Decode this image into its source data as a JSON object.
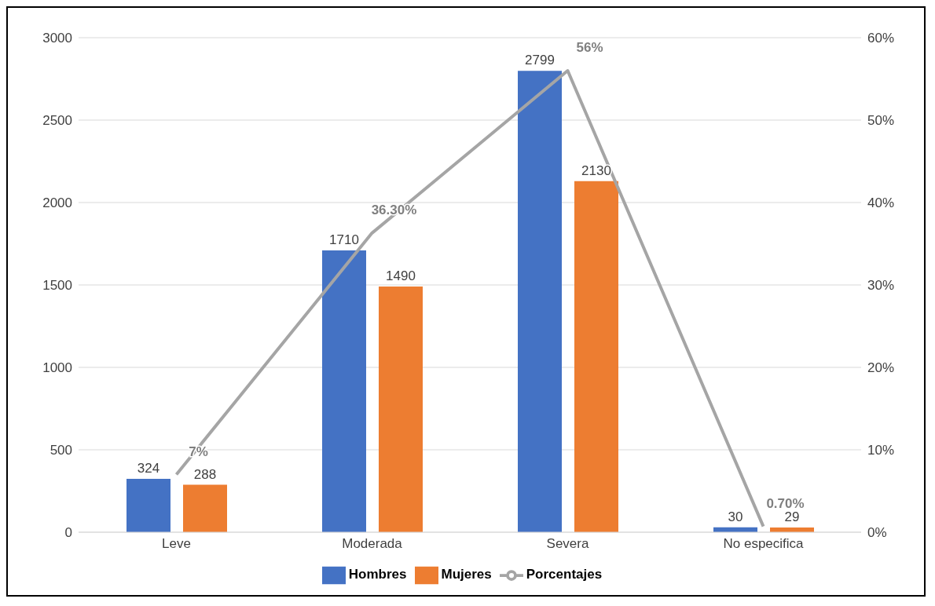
{
  "chart_data": {
    "type": "bar",
    "categories": [
      "Leve",
      "Moderada",
      "Severa",
      "No especifica"
    ],
    "series": [
      {
        "name": "Hombres",
        "color": "#4472c4",
        "values": [
          324,
          1710,
          2799,
          30
        ],
        "value_labels": [
          "324",
          "1710",
          "2799",
          "30"
        ]
      },
      {
        "name": "Mujeres",
        "color": "#ed7d31",
        "values": [
          288,
          1490,
          2130,
          29
        ],
        "value_labels": [
          "288",
          "1490",
          "2130",
          "29"
        ]
      },
      {
        "name": "Porcentajes",
        "type": "line",
        "axis": "y2",
        "color": "#a5a5a5",
        "marker": "none",
        "values": [
          7,
          36.3,
          56,
          0.7
        ],
        "value_labels": [
          "7%",
          "36.30%",
          "56%",
          "0.70%"
        ]
      }
    ],
    "ylim": [
      0,
      3000
    ],
    "yticks": [
      0,
      500,
      1000,
      1500,
      2000,
      2500,
      3000
    ],
    "y2lim": [
      0,
      60
    ],
    "y2ticks": [
      {
        "value": 0,
        "label": "0%"
      },
      {
        "value": 10,
        "label": "10%"
      },
      {
        "value": 20,
        "label": "20%"
      },
      {
        "value": 30,
        "label": "30%"
      },
      {
        "value": 40,
        "label": "40%"
      },
      {
        "value": 50,
        "label": "50%"
      },
      {
        "value": 60,
        "label": "60%"
      }
    ],
    "grid": "y",
    "legend": "bottom"
  }
}
